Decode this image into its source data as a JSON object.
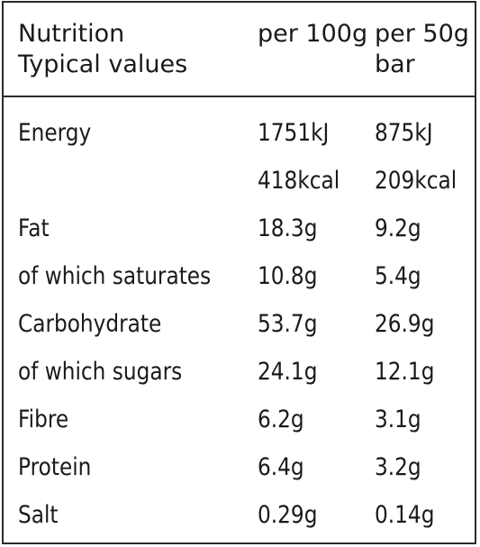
{
  "header": {
    "label_line1": "Nutrition",
    "label_line2": "Typical values",
    "col1": "per 100g",
    "col2_line1": "per 50g",
    "col2_line2": "bar"
  },
  "rows": [
    {
      "label": "Energy",
      "per100": "1751kJ",
      "per50": "875kJ"
    },
    {
      "label": "",
      "per100": "418kcal",
      "per50": "209kcal"
    },
    {
      "label": "Fat",
      "per100": "18.3g",
      "per50": "9.2g"
    },
    {
      "label": "of which saturates",
      "per100": "10.8g",
      "per50": "5.4g"
    },
    {
      "label": "Carbohydrate",
      "per100": "53.7g",
      "per50": "26.9g"
    },
    {
      "label": "of which sugars",
      "per100": "24.1g",
      "per50": "12.1g"
    },
    {
      "label": "Fibre",
      "per100": "6.2g",
      "per50": "3.1g"
    },
    {
      "label": "Protein",
      "per100": "6.4g",
      "per50": "3.2g"
    },
    {
      "label": "Salt",
      "per100": "0.29g",
      "per50": "0.14g"
    }
  ]
}
